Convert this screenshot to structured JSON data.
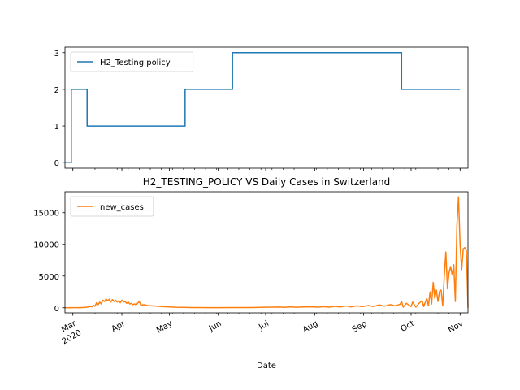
{
  "chart_data": [
    {
      "type": "line",
      "title": "",
      "xlabel": "",
      "ylabel": "",
      "ylim": [
        -0.15,
        3.15
      ],
      "yticks": [
        0,
        1,
        2,
        3
      ],
      "legend": "top-left",
      "grid": false,
      "series": [
        {
          "name": "H2_Testing policy",
          "color": "#1f77b4",
          "points": [
            [
              "2020-02-25",
              0
            ],
            [
              "2020-02-29",
              0
            ],
            [
              "2020-02-29",
              2
            ],
            [
              "2020-03-10",
              2
            ],
            [
              "2020-03-10",
              1
            ],
            [
              "2020-05-11",
              1
            ],
            [
              "2020-05-11",
              2
            ],
            [
              "2020-06-10",
              2
            ],
            [
              "2020-06-10",
              3
            ],
            [
              "2020-09-25",
              3
            ],
            [
              "2020-09-25",
              2
            ],
            [
              "2020-11-01",
              2
            ]
          ]
        }
      ]
    },
    {
      "type": "line",
      "title": "H2_TESTING_POLICY VS Daily Cases in Switzerland",
      "xlabel": "Date",
      "ylabel": "",
      "ylim": [
        -800,
        18300
      ],
      "yticks": [
        0,
        5000,
        10000,
        15000
      ],
      "ytick_labels": [
        "0",
        "5000",
        "10000",
        "15000"
      ],
      "legend": "top-left",
      "grid": false,
      "xtick_labels": [
        {
          "date": "2020-03-01",
          "lines": [
            "Mar",
            "2020"
          ]
        },
        {
          "date": "2020-04-01",
          "lines": [
            "Apr"
          ]
        },
        {
          "date": "2020-05-01",
          "lines": [
            "May"
          ]
        },
        {
          "date": "2020-06-01",
          "lines": [
            "Jun"
          ]
        },
        {
          "date": "2020-07-01",
          "lines": [
            "Jul"
          ]
        },
        {
          "date": "2020-08-01",
          "lines": [
            "Aug"
          ]
        },
        {
          "date": "2020-09-01",
          "lines": [
            "Sep"
          ]
        },
        {
          "date": "2020-10-01",
          "lines": [
            "Oct"
          ]
        },
        {
          "date": "2020-11-01",
          "lines": [
            "Nov"
          ]
        }
      ],
      "series": [
        {
          "name": "new_cases",
          "color": "#ff7f0e",
          "points": [
            [
              "2020-02-25",
              0
            ],
            [
              "2020-03-01",
              10
            ],
            [
              "2020-03-05",
              20
            ],
            [
              "2020-03-08",
              50
            ],
            [
              "2020-03-10",
              100
            ],
            [
              "2020-03-12",
              200
            ],
            [
              "2020-03-13",
              150
            ],
            [
              "2020-03-14",
              400
            ],
            [
              "2020-03-15",
              250
            ],
            [
              "2020-03-16",
              800
            ],
            [
              "2020-03-17",
              500
            ],
            [
              "2020-03-18",
              900
            ],
            [
              "2020-03-19",
              600
            ],
            [
              "2020-03-20",
              1200
            ],
            [
              "2020-03-21",
              1000
            ],
            [
              "2020-03-22",
              1400
            ],
            [
              "2020-03-23",
              1100
            ],
            [
              "2020-03-24",
              1350
            ],
            [
              "2020-03-25",
              900
            ],
            [
              "2020-03-26",
              1300
            ],
            [
              "2020-03-27",
              1000
            ],
            [
              "2020-03-28",
              1200
            ],
            [
              "2020-03-29",
              900
            ],
            [
              "2020-03-30",
              1100
            ],
            [
              "2020-03-31",
              800
            ],
            [
              "2020-04-01",
              1200
            ],
            [
              "2020-04-02",
              900
            ],
            [
              "2020-04-03",
              1000
            ],
            [
              "2020-04-04",
              700
            ],
            [
              "2020-04-05",
              900
            ],
            [
              "2020-04-06",
              600
            ],
            [
              "2020-04-07",
              700
            ],
            [
              "2020-04-08",
              500
            ],
            [
              "2020-04-09",
              600
            ],
            [
              "2020-04-10",
              450
            ],
            [
              "2020-04-12",
              1000
            ],
            [
              "2020-04-13",
              400
            ],
            [
              "2020-04-15",
              500
            ],
            [
              "2020-04-17",
              350
            ],
            [
              "2020-04-20",
              300
            ],
            [
              "2020-04-23",
              250
            ],
            [
              "2020-04-26",
              200
            ],
            [
              "2020-04-30",
              150
            ],
            [
              "2020-05-05",
              80
            ],
            [
              "2020-05-10",
              60
            ],
            [
              "2020-05-15",
              40
            ],
            [
              "2020-05-20",
              30
            ],
            [
              "2020-05-25",
              20
            ],
            [
              "2020-06-01",
              20
            ],
            [
              "2020-06-10",
              25
            ],
            [
              "2020-06-20",
              30
            ],
            [
              "2020-06-25",
              50
            ],
            [
              "2020-06-30",
              80
            ],
            [
              "2020-07-05",
              100
            ],
            [
              "2020-07-10",
              120
            ],
            [
              "2020-07-13",
              60
            ],
            [
              "2020-07-17",
              140
            ],
            [
              "2020-07-20",
              80
            ],
            [
              "2020-07-25",
              130
            ],
            [
              "2020-07-30",
              150
            ],
            [
              "2020-08-03",
              90
            ],
            [
              "2020-08-07",
              180
            ],
            [
              "2020-08-10",
              100
            ],
            [
              "2020-08-14",
              230
            ],
            [
              "2020-08-17",
              120
            ],
            [
              "2020-08-21",
              280
            ],
            [
              "2020-08-24",
              150
            ],
            [
              "2020-08-28",
              300
            ],
            [
              "2020-08-31",
              180
            ],
            [
              "2020-09-04",
              350
            ],
            [
              "2020-09-07",
              200
            ],
            [
              "2020-09-11",
              450
            ],
            [
              "2020-09-14",
              250
            ],
            [
              "2020-09-18",
              500
            ],
            [
              "2020-09-21",
              300
            ],
            [
              "2020-09-24",
              550
            ],
            [
              "2020-09-25",
              1000
            ],
            [
              "2020-09-26",
              100
            ],
            [
              "2020-09-28",
              700
            ],
            [
              "2020-10-01",
              200
            ],
            [
              "2020-10-02",
              900
            ],
            [
              "2020-10-04",
              100
            ],
            [
              "2020-10-06",
              700
            ],
            [
              "2020-10-08",
              1100
            ],
            [
              "2020-10-09",
              200
            ],
            [
              "2020-10-11",
              1500
            ],
            [
              "2020-10-12",
              300
            ],
            [
              "2020-10-13",
              2500
            ],
            [
              "2020-10-14",
              600
            ],
            [
              "2020-10-15",
              4000
            ],
            [
              "2020-10-16",
              1500
            ],
            [
              "2020-10-17",
              2800
            ],
            [
              "2020-10-18",
              1000
            ],
            [
              "2020-10-19",
              2600
            ],
            [
              "2020-10-20",
              2800
            ],
            [
              "2020-10-21",
              300
            ],
            [
              "2020-10-22",
              5000
            ],
            [
              "2020-10-23",
              8800
            ],
            [
              "2020-10-24",
              3000
            ],
            [
              "2020-10-25",
              5500
            ],
            [
              "2020-10-26",
              6500
            ],
            [
              "2020-10-27",
              5200
            ],
            [
              "2020-10-28",
              6800
            ],
            [
              "2020-10-29",
              1000
            ],
            [
              "2020-10-30",
              13000
            ],
            [
              "2020-10-31",
              17500
            ],
            [
              "2020-11-01",
              10000
            ],
            [
              "2020-11-02",
              6000
            ],
            [
              "2020-11-03",
              9300
            ],
            [
              "2020-11-04",
              9500
            ],
            [
              "2020-11-05",
              9000
            ],
            [
              "2020-11-06",
              0
            ]
          ]
        }
      ]
    }
  ]
}
